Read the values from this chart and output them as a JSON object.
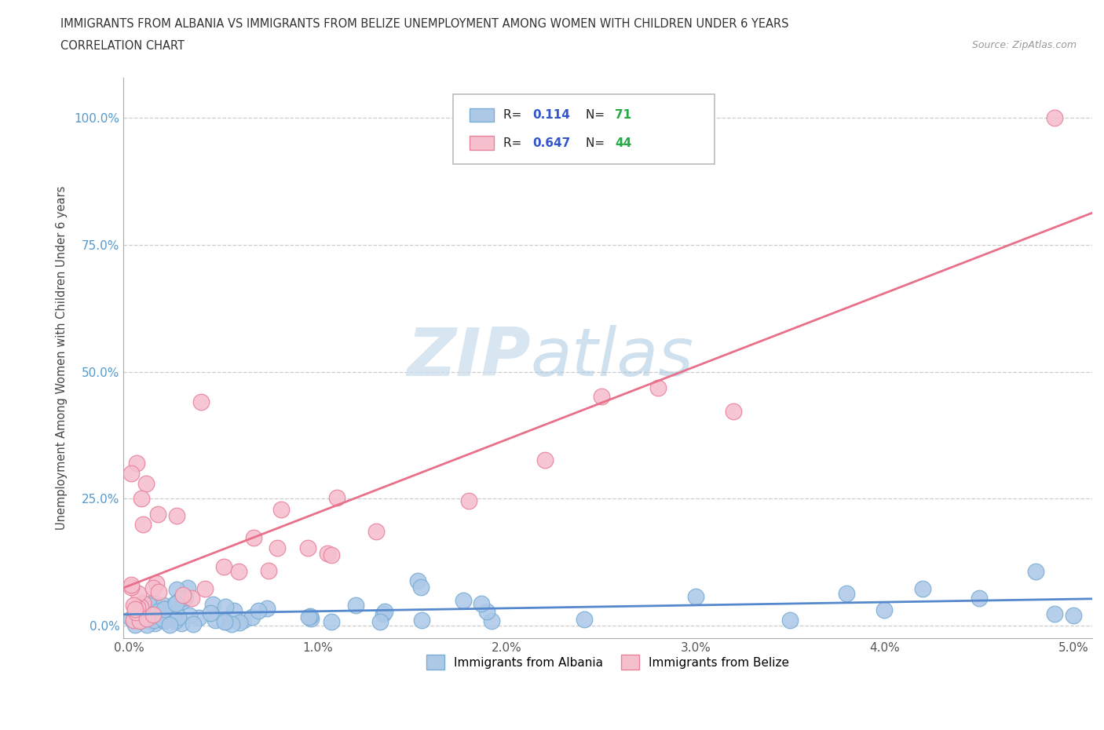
{
  "title_line1": "IMMIGRANTS FROM ALBANIA VS IMMIGRANTS FROM BELIZE UNEMPLOYMENT AMONG WOMEN WITH CHILDREN UNDER 6 YEARS",
  "title_line2": "CORRELATION CHART",
  "source_text": "Source: ZipAtlas.com",
  "ylabel": "Unemployment Among Women with Children Under 6 years",
  "xlim": [
    -0.0003,
    0.051
  ],
  "ylim": [
    -0.025,
    1.08
  ],
  "xticks": [
    0.0,
    0.01,
    0.02,
    0.03,
    0.04,
    0.05
  ],
  "xtick_labels": [
    "0.0%",
    "1.0%",
    "2.0%",
    "3.0%",
    "4.0%",
    "5.0%"
  ],
  "yticks": [
    0.0,
    0.25,
    0.5,
    0.75,
    1.0
  ],
  "ytick_labels": [
    "0.0%",
    "25.0%",
    "50.0%",
    "75.0%",
    "100.0%"
  ],
  "albania_color": "#adc9e8",
  "albania_edge_color": "#7aadd4",
  "belize_color": "#f5bfce",
  "belize_edge_color": "#e8829a",
  "albania_line_color": "#5588cc",
  "belize_line_color": "#e8708a",
  "albania_R": 0.114,
  "albania_N": 71,
  "belize_R": 0.647,
  "belize_N": 44,
  "watermark_zip": "ZIP",
  "watermark_atlas": "atlas",
  "legend_R_color": "#3355cc",
  "legend_N_color": "#22aa44",
  "background_color": "#ffffff",
  "grid_color": "#cccccc",
  "spine_color": "#aaaaaa"
}
